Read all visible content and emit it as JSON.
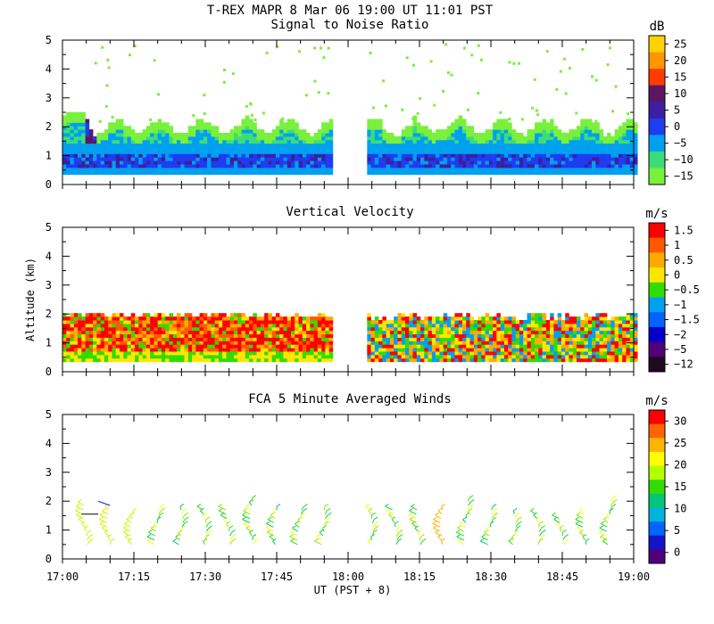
{
  "chart_data": [
    {
      "type": "heatmap",
      "figure_title": "T-REX  MAPR  8 Mar 06  19:00 UT  11:01  PST",
      "title": "Signal to Noise Ratio",
      "ylabel": "",
      "xlabel": "",
      "xlim": [
        0,
        120
      ],
      "ylim": [
        0,
        5
      ],
      "yticks": [
        "0",
        "1",
        "2",
        "3",
        "4",
        "5"
      ],
      "data_segments": [
        [
          0,
          56
        ],
        [
          64,
          120
        ]
      ],
      "field": "snr",
      "colorbar": {
        "unit": "dB",
        "labels": [
          "25",
          "20",
          "15",
          "10",
          "5",
          "0",
          "−5",
          "−10",
          "−15"
        ],
        "colors": [
          "#ffd200",
          "#ff9600",
          "#ff3c00",
          "#5a1664",
          "#3c1ea0",
          "#1e3cf0",
          "#00a0f0",
          "#3cdc78",
          "#78f03c"
        ]
      }
    },
    {
      "type": "heatmap",
      "title": "Vertical Velocity",
      "ylabel": "Altitude (km)",
      "xlabel": "",
      "xlim": [
        0,
        120
      ],
      "ylim": [
        0,
        5
      ],
      "yticks": [
        "0",
        "1",
        "2",
        "3",
        "4",
        "5"
      ],
      "data_segments": [
        [
          0,
          56
        ],
        [
          64,
          120
        ]
      ],
      "field": "w",
      "colorbar": {
        "unit": "m/s",
        "labels": [
          "1.5",
          "1",
          "0.5",
          "0",
          "−0.5",
          "−1",
          "−1.5",
          "−2",
          "−5",
          "−12"
        ],
        "colors": [
          "#ff0000",
          "#ff5a00",
          "#ffaa00",
          "#ffe600",
          "#32dc00",
          "#00a0f0",
          "#0064ff",
          "#0000c8",
          "#500078",
          "#1e0a1e"
        ]
      }
    },
    {
      "type": "scatter",
      "title": "FCA 5 Minute Averaged Winds",
      "ylabel": "",
      "xlabel": "UT  (PST + 8)",
      "xlim": [
        0,
        120
      ],
      "ylim": [
        0,
        5
      ],
      "yticks": [
        "0",
        "1",
        "2",
        "3",
        "4",
        "5"
      ],
      "xticks": [
        "17:00",
        "17:15",
        "17:30",
        "17:45",
        "18:00",
        "18:15",
        "18:30",
        "18:45",
        "19:00"
      ],
      "profile_times": [
        5,
        10,
        15,
        20,
        25,
        30,
        35,
        40,
        45,
        50,
        55,
        65,
        70,
        75,
        80,
        85,
        90,
        95,
        100,
        105,
        110,
        115
      ],
      "profile_top_km": [
        1.9,
        1.8,
        1.6,
        1.7,
        1.8,
        1.8,
        1.8,
        2.1,
        1.8,
        1.8,
        1.8,
        1.8,
        1.8,
        1.8,
        1.8,
        2.1,
        1.7,
        1.6,
        1.6,
        1.5,
        1.6,
        2.1
      ],
      "profile_bottom_km": 0.5,
      "colorbar": {
        "unit": "m/s",
        "labels": [
          "30",
          "25",
          "20",
          "15",
          "10",
          "5",
          "0"
        ],
        "colors": [
          "#ff0000",
          "#ff6400",
          "#ffb400",
          "#ffff00",
          "#b4ff00",
          "#32dc00",
          "#00c878",
          "#00b4dc",
          "#0064ff",
          "#1414c8",
          "#500078"
        ]
      }
    }
  ]
}
